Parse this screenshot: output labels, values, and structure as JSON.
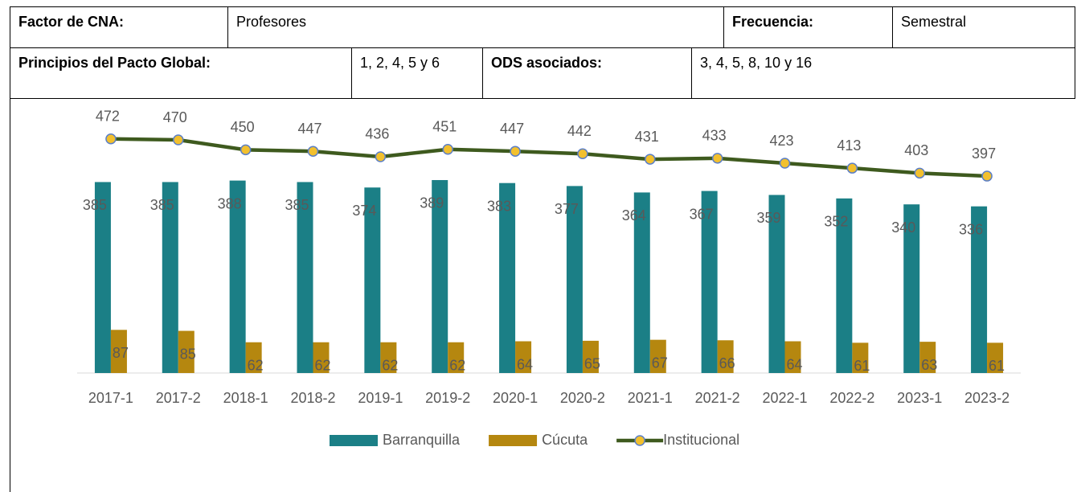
{
  "table": {
    "rows": [
      [
        "Factor de CNA:",
        "Profesores",
        "Frecuencia:",
        "Semestral"
      ],
      [
        "Principios del Pacto Global:",
        "1, 2, 4, 5 y 6",
        "ODS asociados:",
        "3, 4, 5, 8, 10 y 16"
      ]
    ]
  },
  "chart_data": {
    "type": "bar",
    "categories": [
      "2017-1",
      "2017-2",
      "2018-1",
      "2018-2",
      "2019-1",
      "2019-2",
      "2020-1",
      "2020-2",
      "2021-1",
      "2021-2",
      "2022-1",
      "2022-2",
      "2023-1",
      "2023-2"
    ],
    "series": [
      {
        "name": "Barranquilla",
        "type": "bar",
        "color": "#1b7f86",
        "values": [
          385,
          385,
          388,
          385,
          374,
          389,
          383,
          377,
          364,
          367,
          359,
          352,
          340,
          336
        ]
      },
      {
        "name": "Cúcuta",
        "type": "bar",
        "color": "#b5870f",
        "values": [
          87,
          85,
          62,
          62,
          62,
          62,
          64,
          65,
          67,
          66,
          64,
          61,
          63,
          61
        ]
      },
      {
        "name": "Institucional",
        "type": "line",
        "color": "#3e5a1e",
        "marker_color": "#f2c02e",
        "marker_edge": "#5b7fc7",
        "values": [
          472,
          470,
          450,
          447,
          436,
          451,
          447,
          442,
          431,
          433,
          423,
          413,
          403,
          397
        ]
      }
    ],
    "legend": "bottom"
  }
}
